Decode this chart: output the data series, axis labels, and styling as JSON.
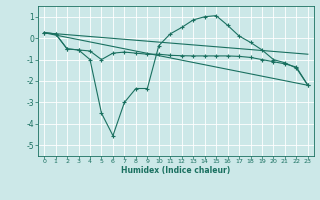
{
  "xlabel": "Humidex (Indice chaleur)",
  "background_color": "#cce8e8",
  "grid_color": "#ffffff",
  "line_color": "#1a7060",
  "xlim": [
    -0.5,
    23.5
  ],
  "ylim": [
    -5.5,
    1.5
  ],
  "yticks": [
    1,
    0,
    -1,
    -2,
    -3,
    -4,
    -5
  ],
  "xticks": [
    0,
    1,
    2,
    3,
    4,
    5,
    6,
    7,
    8,
    9,
    10,
    11,
    12,
    13,
    14,
    15,
    16,
    17,
    18,
    19,
    20,
    21,
    22,
    23
  ],
  "line1_x": [
    0,
    1,
    2,
    3,
    4,
    5,
    6,
    7,
    8,
    9,
    10,
    11,
    12,
    13,
    14,
    15,
    16,
    17,
    18,
    19,
    20,
    21,
    22,
    23
  ],
  "line1_y": [
    0.25,
    0.2,
    -0.5,
    -0.55,
    -0.6,
    -1.0,
    -0.7,
    -0.65,
    -0.7,
    -0.75,
    -0.75,
    -0.8,
    -0.82,
    -0.83,
    -0.83,
    -0.83,
    -0.83,
    -0.85,
    -0.9,
    -1.0,
    -1.1,
    -1.2,
    -1.35,
    -2.2
  ],
  "line2_x": [
    0,
    1,
    2,
    3,
    4,
    5,
    6,
    7,
    8,
    9,
    10,
    11,
    12,
    13,
    14,
    15,
    16,
    17,
    18,
    19,
    20,
    21,
    22,
    23
  ],
  "line2_y": [
    0.25,
    0.2,
    -0.5,
    -0.55,
    -1.0,
    -3.5,
    -4.55,
    -3.0,
    -2.35,
    -2.35,
    -0.35,
    0.2,
    0.5,
    0.85,
    1.0,
    1.05,
    0.6,
    0.1,
    -0.2,
    -0.55,
    -1.0,
    -1.15,
    -1.4,
    -2.2
  ],
  "line3_x": [
    0,
    23
  ],
  "line3_y": [
    0.25,
    -2.2
  ],
  "line4_x": [
    0,
    23
  ],
  "line4_y": [
    0.25,
    -0.75
  ]
}
